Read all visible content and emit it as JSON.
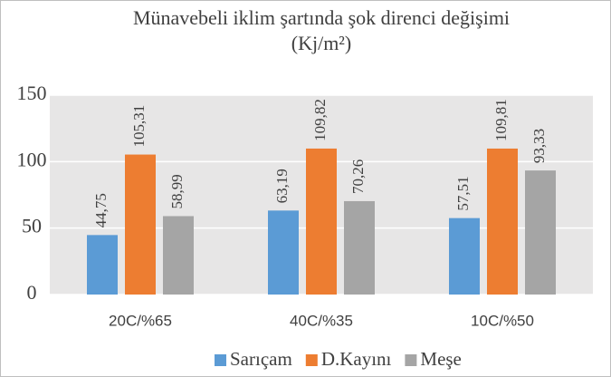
{
  "chart_data": {
    "type": "bar",
    "title": [
      "Münavebeli iklim şartında şok direnci değişimi",
      "(Kj/m²)"
    ],
    "categories": [
      "20C/%65",
      "40C/%35",
      "10C/%50"
    ],
    "series": [
      {
        "name": "Sarıçam",
        "color": "#5b9bd5",
        "values": [
          44.75,
          63.19,
          57.51
        ],
        "value_labels": [
          "44,75",
          "63,19",
          "57,51"
        ]
      },
      {
        "name": "D.Kayını",
        "color": "#ed7d31",
        "values": [
          105.31,
          109.82,
          109.81
        ],
        "value_labels": [
          "105,31",
          "109,82",
          "109,81"
        ]
      },
      {
        "name": "Meşe",
        "color": "#a5a5a5",
        "values": [
          58.99,
          70.26,
          93.33
        ],
        "value_labels": [
          "58,99",
          "70,26",
          "93,33"
        ]
      }
    ],
    "ylim": [
      0,
      150
    ],
    "yticks": [
      0,
      50,
      100,
      150
    ],
    "grid": true,
    "legend": "bottom"
  }
}
